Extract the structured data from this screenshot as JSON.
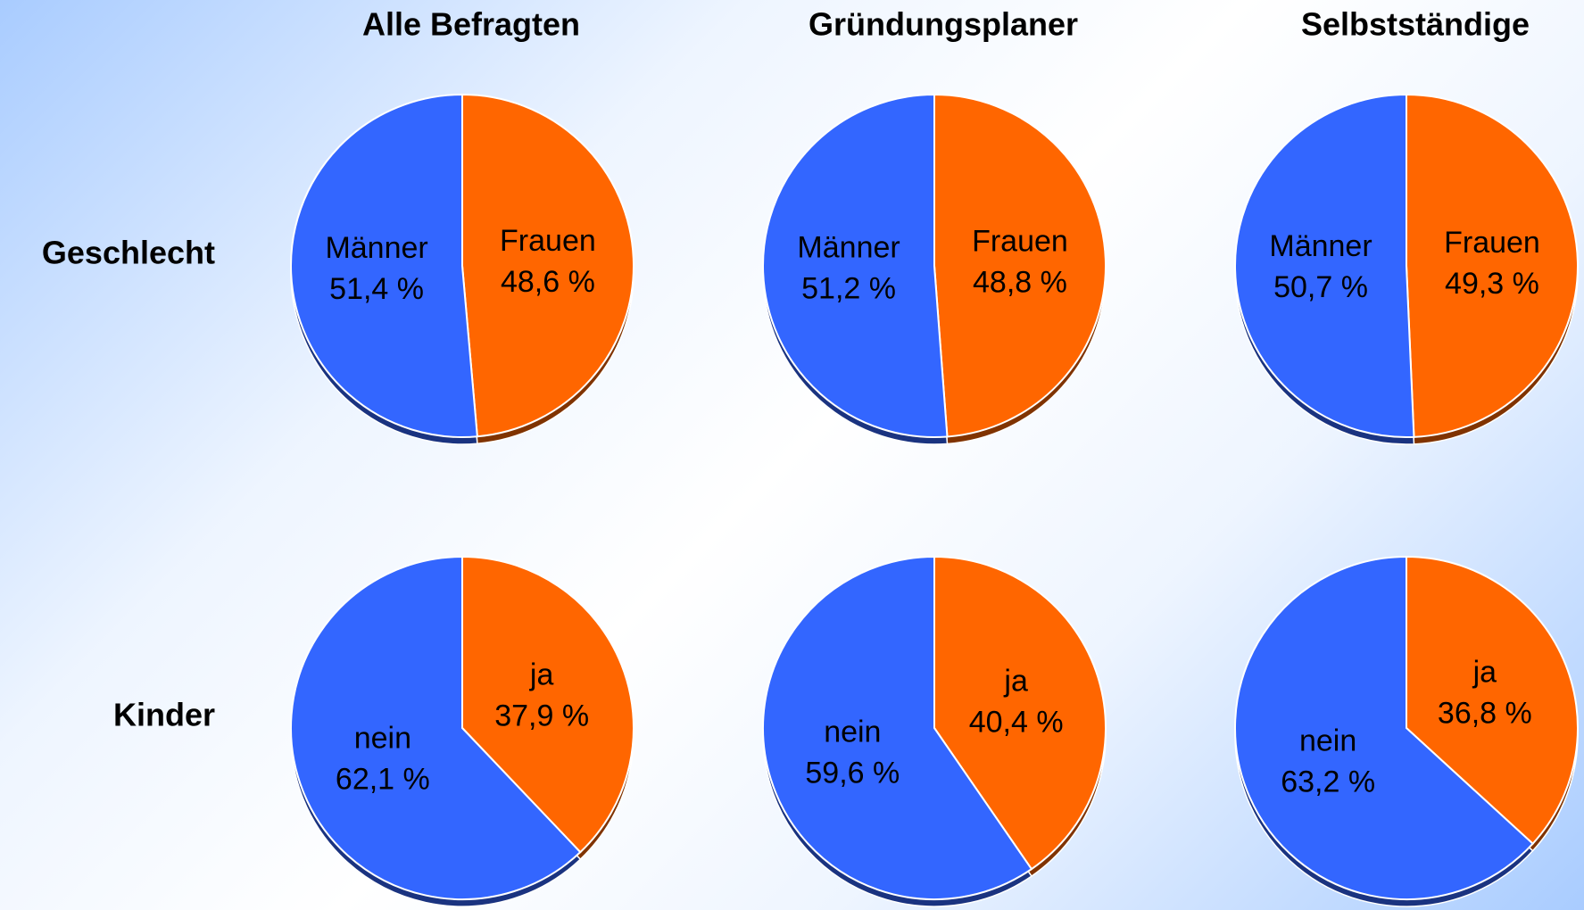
{
  "columns": [
    "Alle Befragten",
    "Gründungsplaner",
    "Selbstständige"
  ],
  "rows": [
    "Geschlecht",
    "Kinder"
  ],
  "chart_data": [
    {
      "type": "pie",
      "categories": [
        "Frauen",
        "Männer"
      ],
      "values": [
        48.6,
        51.4
      ],
      "value_labels": [
        "48,6 %",
        "51,4 %"
      ],
      "colors": [
        "#ff6600",
        "#3366ff"
      ]
    },
    {
      "type": "pie",
      "categories": [
        "Frauen",
        "Männer"
      ],
      "values": [
        48.8,
        51.2
      ],
      "value_labels": [
        "48,8 %",
        "51,2 %"
      ],
      "colors": [
        "#ff6600",
        "#3366ff"
      ]
    },
    {
      "type": "pie",
      "categories": [
        "Frauen",
        "Männer"
      ],
      "values": [
        49.3,
        50.7
      ],
      "value_labels": [
        "49,3 %",
        "50,7 %"
      ],
      "colors": [
        "#ff6600",
        "#3366ff"
      ]
    },
    {
      "type": "pie",
      "categories": [
        "ja",
        "nein"
      ],
      "values": [
        37.9,
        62.1
      ],
      "value_labels": [
        "37,9 %",
        "62,1 %"
      ],
      "colors": [
        "#ff6600",
        "#3366ff"
      ]
    },
    {
      "type": "pie",
      "categories": [
        "ja",
        "nein"
      ],
      "values": [
        40.4,
        59.6
      ],
      "value_labels": [
        "40,4 %",
        "59,6 %"
      ],
      "colors": [
        "#ff6600",
        "#3366ff"
      ]
    },
    {
      "type": "pie",
      "categories": [
        "ja",
        "nein"
      ],
      "values": [
        36.8,
        63.2
      ],
      "value_labels": [
        "36,8 %",
        "63,2 %"
      ],
      "colors": [
        "#ff6600",
        "#3366ff"
      ]
    }
  ]
}
